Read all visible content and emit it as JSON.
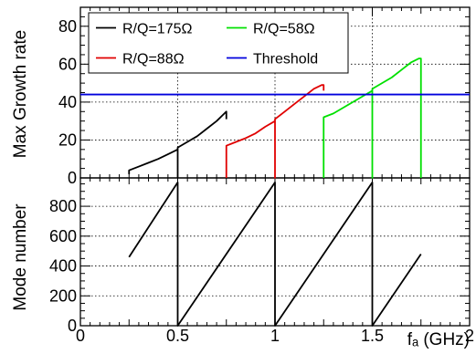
{
  "chart_data": [
    {
      "type": "line",
      "panel": "top",
      "ylabel": "Max Growth rate",
      "xlim": [
        0,
        2
      ],
      "ylim": [
        0,
        90
      ],
      "yticks": [
        0,
        20,
        40,
        60,
        80
      ],
      "grid": true,
      "legend_position": "top",
      "series": [
        {
          "name": "R/Q=175Ω",
          "color": "#000000",
          "segments": [
            [
              [
                0.25,
                2
              ],
              [
                0.25,
                4
              ],
              [
                0.3,
                6
              ],
              [
                0.35,
                8
              ],
              [
                0.4,
                10
              ],
              [
                0.45,
                12.5
              ],
              [
                0.5,
                15
              ],
              [
                0.5,
                0
              ],
              [
                0.5,
                16
              ],
              [
                0.55,
                19
              ],
              [
                0.6,
                22
              ],
              [
                0.65,
                26
              ],
              [
                0.7,
                30
              ],
              [
                0.74,
                34
              ],
              [
                0.75,
                35
              ],
              [
                0.75,
                31
              ]
            ]
          ]
        },
        {
          "name": "R/Q=88Ω",
          "color": "#e00000",
          "segments": [
            [
              [
                0.75,
                0
              ],
              [
                0.75,
                17
              ],
              [
                0.8,
                19
              ],
              [
                0.85,
                21
              ],
              [
                0.9,
                23.5
              ],
              [
                0.95,
                27
              ],
              [
                1.0,
                30
              ],
              [
                1.0,
                0
              ],
              [
                1.0,
                31
              ],
              [
                1.05,
                35
              ],
              [
                1.1,
                39
              ],
              [
                1.15,
                43
              ],
              [
                1.2,
                47
              ],
              [
                1.24,
                49
              ],
              [
                1.25,
                49
              ],
              [
                1.25,
                46
              ]
            ]
          ]
        },
        {
          "name": "R/Q=58Ω",
          "color": "#00e000",
          "segments": [
            [
              [
                1.25,
                0
              ],
              [
                1.25,
                32
              ],
              [
                1.3,
                34
              ],
              [
                1.35,
                37
              ],
              [
                1.4,
                40
              ],
              [
                1.45,
                43
              ],
              [
                1.5,
                46
              ],
              [
                1.5,
                0
              ],
              [
                1.5,
                47
              ],
              [
                1.55,
                50
              ],
              [
                1.6,
                53
              ],
              [
                1.65,
                57
              ],
              [
                1.7,
                61
              ],
              [
                1.74,
                63
              ],
              [
                1.75,
                63
              ],
              [
                1.75,
                0
              ]
            ]
          ]
        },
        {
          "name": "Threshold",
          "color": "#0000dd",
          "segments": [
            [
              [
                0,
                44
              ],
              [
                2,
                44
              ]
            ]
          ]
        }
      ]
    },
    {
      "type": "line",
      "panel": "bottom",
      "ylabel": "Mode number",
      "xlabel": "fₐ (GHz)",
      "xlim": [
        0,
        2
      ],
      "ylim": [
        0,
        990
      ],
      "yticks": [
        0,
        200,
        400,
        600,
        800
      ],
      "xticks": [
        0,
        0.5,
        1,
        1.5,
        2
      ],
      "xtick_labels": [
        "0",
        "0.5",
        "1",
        "1.5",
        "2"
      ],
      "grid": true,
      "series": [
        {
          "name": "",
          "color": "#000000",
          "segments": [
            [
              [
                0.25,
                460
              ],
              [
                0.5,
                960
              ],
              [
                0.5,
                0
              ],
              [
                1.0,
                960
              ],
              [
                1.0,
                0
              ],
              [
                1.5,
                960
              ],
              [
                1.5,
                0
              ],
              [
                1.75,
                480
              ]
            ]
          ]
        }
      ]
    }
  ]
}
